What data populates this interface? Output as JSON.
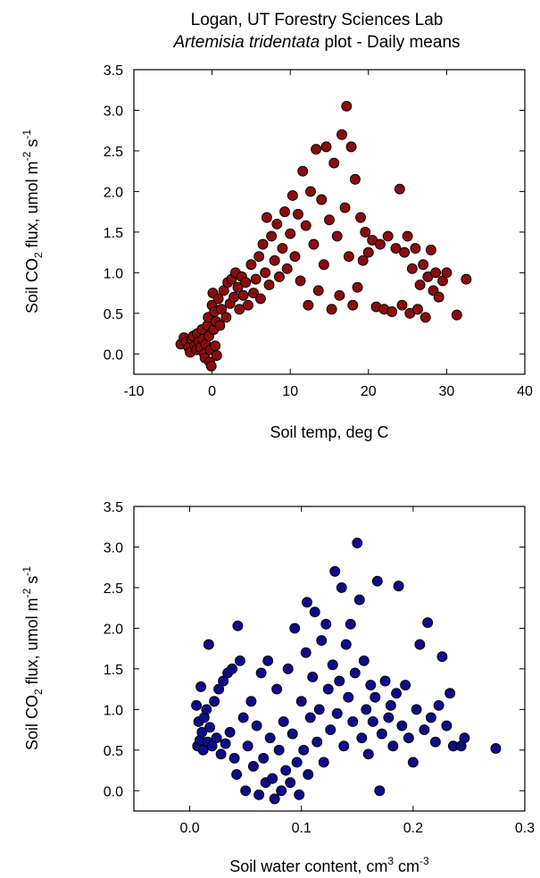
{
  "title": {
    "line1": "Logan, UT Forestry Sciences Lab",
    "line2_italic": "Artemisia tridentata",
    "line2_rest": " plot - Daily means"
  },
  "chart_data": [
    {
      "type": "scatter",
      "xlabel": "Soil temp, deg C",
      "ylabel": "Soil CO2 flux, umol m-2 s-1",
      "xlim": [
        -10,
        40
      ],
      "ylim": [
        -0.25,
        3.5
      ],
      "xticks": [
        "-10",
        "0",
        "10",
        "20",
        "30",
        "40"
      ],
      "yticks": [
        "0.0",
        "0.5",
        "1.0",
        "1.5",
        "2.0",
        "2.5",
        "3.0",
        "3.5"
      ],
      "marker_color": "#8b0c0c",
      "points": [
        [
          -4.0,
          0.12
        ],
        [
          -3.6,
          0.2
        ],
        [
          -3.3,
          0.15
        ],
        [
          -3.0,
          0.08
        ],
        [
          -2.8,
          0.02
        ],
        [
          -2.6,
          0.18
        ],
        [
          -2.4,
          0.22
        ],
        [
          -2.2,
          0.1
        ],
        [
          -2.0,
          0.05
        ],
        [
          -1.9,
          0.25
        ],
        [
          -1.7,
          0.15
        ],
        [
          -1.5,
          0.08
        ],
        [
          -1.3,
          0.3
        ],
        [
          -1.2,
          0.18
        ],
        [
          -1.0,
          0.0
        ],
        [
          -0.9,
          -0.05
        ],
        [
          -0.8,
          0.12
        ],
        [
          -0.6,
          0.35
        ],
        [
          -0.5,
          0.45
        ],
        [
          -0.4,
          0.22
        ],
        [
          -0.3,
          -0.1
        ],
        [
          -0.2,
          0.05
        ],
        [
          -0.1,
          -0.15
        ],
        [
          0.0,
          0.6
        ],
        [
          0.1,
          0.75
        ],
        [
          0.2,
          0.3
        ],
        [
          0.3,
          0.52
        ],
        [
          0.4,
          0.1
        ],
        [
          0.5,
          0.4
        ],
        [
          0.6,
          -0.02
        ],
        [
          0.8,
          0.68
        ],
        [
          1.0,
          0.35
        ],
        [
          1.2,
          0.55
        ],
        [
          1.5,
          0.78
        ],
        [
          1.8,
          0.45
        ],
        [
          2.0,
          0.88
        ],
        [
          2.3,
          0.62
        ],
        [
          2.5,
          0.92
        ],
        [
          2.8,
          0.7
        ],
        [
          3.0,
          1.0
        ],
        [
          3.3,
          0.82
        ],
        [
          3.5,
          0.55
        ],
        [
          3.8,
          0.95
        ],
        [
          4.0,
          0.72
        ],
        [
          4.3,
          0.88
        ],
        [
          4.6,
          0.6
        ],
        [
          5.0,
          1.1
        ],
        [
          5.3,
          0.75
        ],
        [
          5.6,
          0.92
        ],
        [
          6.0,
          1.2
        ],
        [
          6.2,
          0.68
        ],
        [
          6.5,
          1.35
        ],
        [
          6.8,
          1.0
        ],
        [
          7.0,
          1.68
        ],
        [
          7.3,
          0.85
        ],
        [
          7.6,
          1.45
        ],
        [
          8.0,
          1.15
        ],
        [
          8.3,
          1.6
        ],
        [
          8.6,
          0.95
        ],
        [
          9.0,
          1.3
        ],
        [
          9.3,
          1.75
        ],
        [
          9.6,
          1.05
        ],
        [
          10.0,
          1.48
        ],
        [
          10.3,
          1.95
        ],
        [
          10.6,
          1.2
        ],
        [
          11.0,
          1.72
        ],
        [
          11.3,
          0.9
        ],
        [
          11.6,
          2.25
        ],
        [
          12.0,
          1.58
        ],
        [
          12.3,
          0.6
        ],
        [
          12.6,
          2.0
        ],
        [
          13.0,
          1.35
        ],
        [
          13.3,
          2.52
        ],
        [
          13.6,
          0.78
        ],
        [
          14.0,
          1.9
        ],
        [
          14.3,
          1.1
        ],
        [
          14.6,
          2.55
        ],
        [
          15.0,
          1.65
        ],
        [
          15.3,
          0.55
        ],
        [
          15.6,
          2.35
        ],
        [
          16.0,
          1.45
        ],
        [
          16.3,
          0.72
        ],
        [
          16.6,
          2.7
        ],
        [
          17.0,
          1.8
        ],
        [
          17.2,
          3.05
        ],
        [
          17.5,
          1.2
        ],
        [
          17.8,
          2.55
        ],
        [
          18.0,
          0.6
        ],
        [
          18.3,
          2.15
        ],
        [
          18.6,
          0.82
        ],
        [
          19.0,
          1.68
        ],
        [
          19.3,
          1.15
        ],
        [
          19.6,
          1.5
        ],
        [
          20.0,
          1.25
        ],
        [
          20.5,
          1.4
        ],
        [
          21.0,
          0.58
        ],
        [
          21.5,
          1.35
        ],
        [
          22.0,
          0.55
        ],
        [
          22.5,
          1.45
        ],
        [
          23.0,
          0.52
        ],
        [
          23.5,
          1.3
        ],
        [
          24.0,
          2.03
        ],
        [
          24.3,
          0.6
        ],
        [
          24.6,
          1.25
        ],
        [
          25.0,
          1.45
        ],
        [
          25.3,
          0.5
        ],
        [
          25.6,
          1.05
        ],
        [
          26.0,
          1.3
        ],
        [
          26.3,
          0.55
        ],
        [
          26.6,
          0.85
        ],
        [
          27.0,
          1.1
        ],
        [
          27.3,
          0.45
        ],
        [
          27.6,
          0.95
        ],
        [
          28.0,
          1.28
        ],
        [
          28.3,
          0.78
        ],
        [
          28.6,
          1.0
        ],
        [
          29.0,
          0.7
        ],
        [
          29.5,
          0.9
        ],
        [
          30.0,
          1.0
        ],
        [
          31.3,
          0.48
        ],
        [
          32.5,
          0.92
        ]
      ]
    },
    {
      "type": "scatter",
      "xlabel": "Soil water content, cm3 cm-3",
      "ylabel": "Soil CO2 flux, umol m-2 s-1",
      "xlim": [
        -0.05,
        0.3
      ],
      "ylim": [
        -0.25,
        3.5
      ],
      "xticks": [
        "0.0",
        "0.1",
        "0.2",
        "0.3"
      ],
      "yticks": [
        "0.0",
        "0.5",
        "1.0",
        "1.5",
        "2.0",
        "2.5",
        "3.0",
        "3.5"
      ],
      "marker_color": "#0c0c8b",
      "points": [
        [
          0.006,
          1.05
        ],
        [
          0.007,
          0.55
        ],
        [
          0.008,
          0.85
        ],
        [
          0.009,
          0.62
        ],
        [
          0.01,
          1.28
        ],
        [
          0.011,
          0.72
        ],
        [
          0.012,
          0.5
        ],
        [
          0.013,
          0.9
        ],
        [
          0.015,
          1.0
        ],
        [
          0.016,
          0.6
        ],
        [
          0.017,
          1.8
        ],
        [
          0.018,
          0.78
        ],
        [
          0.02,
          0.55
        ],
        [
          0.022,
          1.1
        ],
        [
          0.024,
          0.65
        ],
        [
          0.026,
          1.25
        ],
        [
          0.028,
          0.45
        ],
        [
          0.03,
          1.35
        ],
        [
          0.032,
          0.58
        ],
        [
          0.034,
          1.45
        ],
        [
          0.036,
          0.72
        ],
        [
          0.038,
          1.5
        ],
        [
          0.04,
          0.4
        ],
        [
          0.042,
          0.2
        ],
        [
          0.043,
          2.03
        ],
        [
          0.045,
          1.6
        ],
        [
          0.048,
          0.9
        ],
        [
          0.05,
          0.0
        ],
        [
          0.052,
          0.55
        ],
        [
          0.055,
          1.1
        ],
        [
          0.057,
          0.3
        ],
        [
          0.06,
          0.8
        ],
        [
          0.062,
          -0.05
        ],
        [
          0.064,
          1.45
        ],
        [
          0.066,
          0.4
        ],
        [
          0.068,
          0.1
        ],
        [
          0.07,
          1.6
        ],
        [
          0.072,
          0.65
        ],
        [
          0.074,
          0.15
        ],
        [
          0.076,
          -0.1
        ],
        [
          0.078,
          1.25
        ],
        [
          0.08,
          0.5
        ],
        [
          0.082,
          0.0
        ],
        [
          0.084,
          0.85
        ],
        [
          0.086,
          0.25
        ],
        [
          0.088,
          1.5
        ],
        [
          0.09,
          0.1
        ],
        [
          0.092,
          0.7
        ],
        [
          0.094,
          2.0
        ],
        [
          0.096,
          0.35
        ],
        [
          0.098,
          -0.05
        ],
        [
          0.1,
          1.1
        ],
        [
          0.102,
          0.5
        ],
        [
          0.104,
          1.7
        ],
        [
          0.105,
          2.32
        ],
        [
          0.106,
          0.2
        ],
        [
          0.108,
          0.9
        ],
        [
          0.11,
          1.4
        ],
        [
          0.112,
          2.2
        ],
        [
          0.114,
          0.6
        ],
        [
          0.116,
          1.0
        ],
        [
          0.118,
          1.85
        ],
        [
          0.12,
          0.35
        ],
        [
          0.122,
          2.05
        ],
        [
          0.124,
          1.25
        ],
        [
          0.126,
          0.75
        ],
        [
          0.128,
          1.55
        ],
        [
          0.13,
          2.7
        ],
        [
          0.132,
          0.95
        ],
        [
          0.134,
          1.35
        ],
        [
          0.136,
          2.5
        ],
        [
          0.138,
          0.55
        ],
        [
          0.14,
          1.8
        ],
        [
          0.142,
          1.15
        ],
        [
          0.144,
          2.05
        ],
        [
          0.146,
          0.85
        ],
        [
          0.148,
          1.45
        ],
        [
          0.15,
          3.05
        ],
        [
          0.152,
          2.35
        ],
        [
          0.154,
          0.65
        ],
        [
          0.156,
          1.6
        ],
        [
          0.158,
          1.0
        ],
        [
          0.16,
          0.45
        ],
        [
          0.162,
          1.3
        ],
        [
          0.164,
          0.85
        ],
        [
          0.166,
          1.15
        ],
        [
          0.168,
          2.58
        ],
        [
          0.17,
          0.0
        ],
        [
          0.172,
          0.7
        ],
        [
          0.175,
          1.35
        ],
        [
          0.178,
          0.9
        ],
        [
          0.18,
          1.05
        ],
        [
          0.182,
          0.55
        ],
        [
          0.185,
          1.2
        ],
        [
          0.187,
          2.52
        ],
        [
          0.19,
          0.8
        ],
        [
          0.193,
          1.3
        ],
        [
          0.196,
          0.65
        ],
        [
          0.2,
          0.35
        ],
        [
          0.203,
          1.0
        ],
        [
          0.206,
          1.8
        ],
        [
          0.21,
          0.75
        ],
        [
          0.213,
          2.07
        ],
        [
          0.216,
          0.9
        ],
        [
          0.22,
          0.6
        ],
        [
          0.223,
          1.05
        ],
        [
          0.226,
          1.65
        ],
        [
          0.23,
          0.8
        ],
        [
          0.233,
          1.2
        ],
        [
          0.236,
          0.55
        ],
        [
          0.243,
          0.55
        ],
        [
          0.246,
          0.65
        ],
        [
          0.274,
          0.52
        ]
      ]
    }
  ]
}
